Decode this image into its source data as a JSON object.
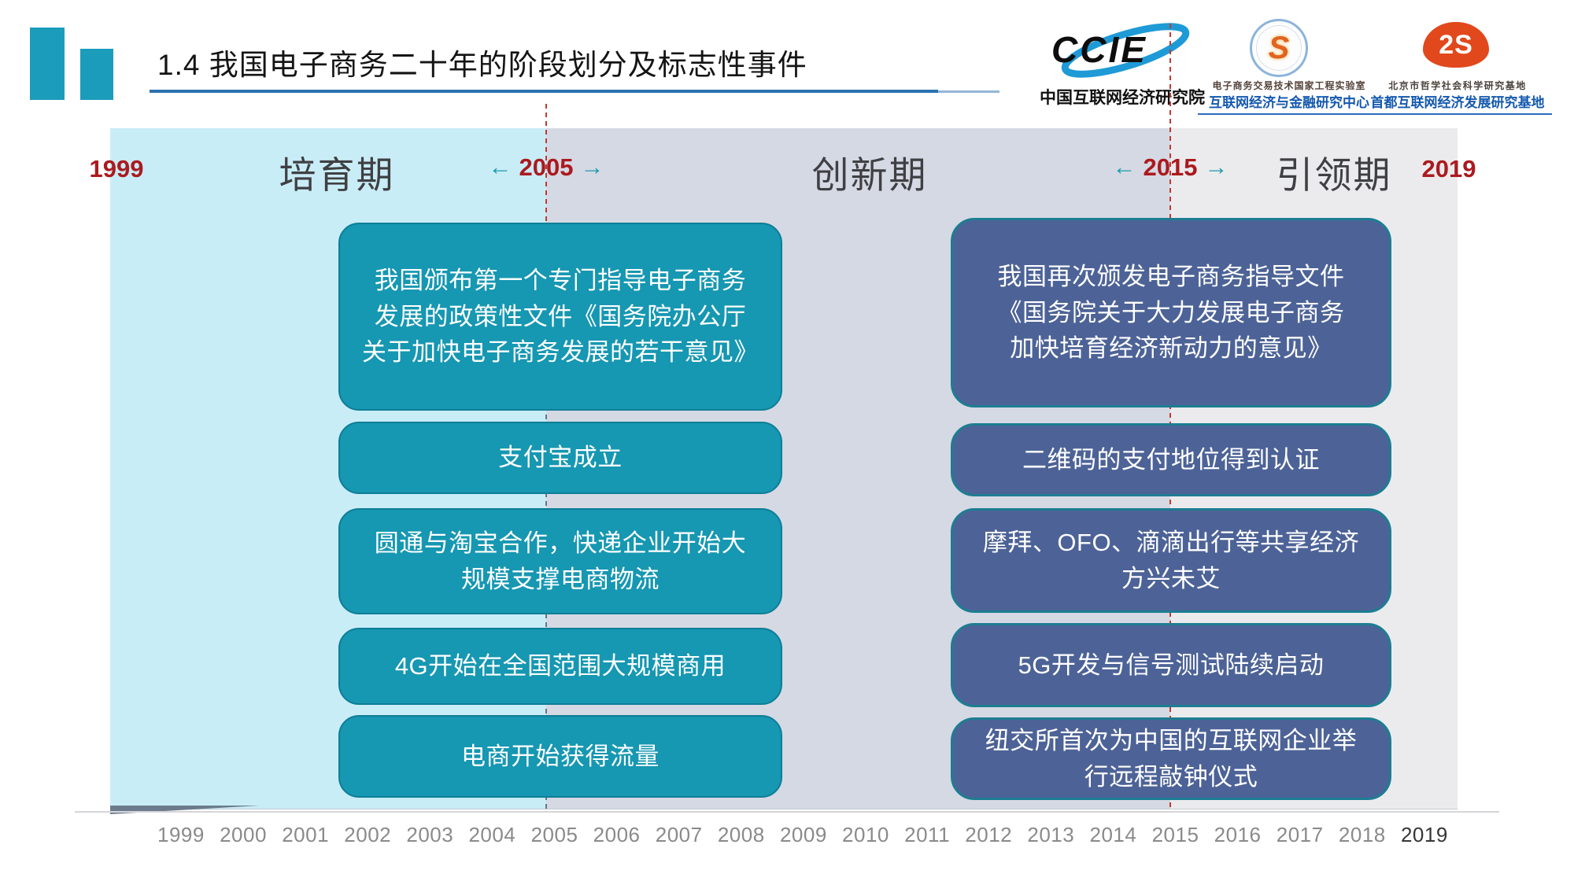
{
  "header": {
    "title": "1.4  我国电子商务二十年的阶段划分及标志性事件",
    "logos": {
      "ccie": {
        "acronym": "CCIE",
        "caption": "中国互联网经济研究院"
      },
      "finance_center": {
        "seal_glyph": "S",
        "small_caption": "电子商务交易技术国家工程实验室",
        "caption": "互联网经济与金融研究中心"
      },
      "capital_base": {
        "monogram": "2S",
        "small_caption": "北京市哲学社会科学研究基地",
        "caption": "首都互联网经济发展研究基地"
      }
    }
  },
  "icons": {
    "left_arrow": "←",
    "right_arrow": "→"
  },
  "timeline": {
    "phases": [
      {
        "label": "培育期",
        "bg": "#c9edf7"
      },
      {
        "label": "创新期",
        "bg": "#d5d9e4"
      },
      {
        "label": "引领期",
        "bg": "#ebebed"
      }
    ],
    "markers": {
      "start": "1999",
      "boundary1": "2005",
      "boundary2": "2015",
      "end": "2019"
    },
    "left_events": [
      {
        "lines": [
          "我国颁布第一个专门指导电子商务",
          "发展的政策性文件《国务院办公厅",
          "关于加快电子商务发展的若干意见》"
        ]
      },
      {
        "lines": [
          "支付宝成立"
        ]
      },
      {
        "lines": [
          "圆通与淘宝合作，快递企业开始大",
          "规模支撑电商物流"
        ]
      },
      {
        "lines": [
          "4G开始在全国范围大规模商用"
        ]
      },
      {
        "lines": [
          "电商开始获得流量"
        ]
      },
      {
        "lines": [
          "我国再次颁发电子商务指导文件",
          "《国务院关于大力发展电子商务",
          "加快培育经济新动力的意见》"
        ]
      },
      {
        "lines": [
          "二维码的支付地位得到认证"
        ]
      },
      {
        "lines": [
          "摩拜、OFO、滴滴出行等共享经济",
          "方兴未艾"
        ]
      },
      {
        "lines": [
          "5G开发与信号测试陆续启动"
        ]
      },
      {
        "lines": [
          "纽交所首次为中国的互联网企业举",
          "行远程敲钟仪式"
        ]
      }
    ]
  },
  "axis": {
    "years": [
      "1999",
      "2000",
      "2001",
      "2002",
      "2003",
      "2004",
      "2005",
      "2006",
      "2007",
      "2008",
      "2009",
      "2010",
      "2011",
      "2012",
      "2013",
      "2014",
      "2015",
      "2016",
      "2017",
      "2018",
      "2019"
    ],
    "highlight": "2019"
  },
  "colors": {
    "accent_teal": "#1697b2",
    "accent_slate_blue": "#4d6397",
    "phase_incubation_bg": "#c9edf7",
    "phase_innovation_bg": "#d5d9e4",
    "phase_leading_bg": "#ebebed",
    "marker_red": "#ab1a1e",
    "dashed_line_red": "#bf3a30",
    "title_underline_blue": "#2b72ae",
    "logo_blue": "#1559ae",
    "logo_orange": "#e1481c"
  }
}
